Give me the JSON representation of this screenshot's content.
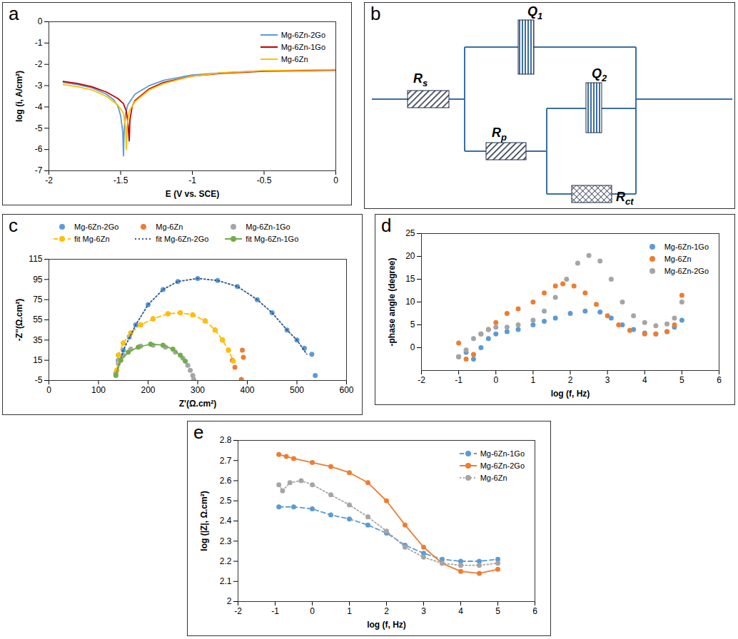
{
  "chart_data": [
    {
      "type": "line",
      "title": "a",
      "x_label": "E (V vs. SCE)",
      "y_label": "log (i, A/cm²)",
      "xlim": [
        -2,
        0
      ],
      "xticks": [
        -2,
        -1.5,
        -1,
        -0.5,
        0
      ],
      "ylim": [
        -7,
        0
      ],
      "yticks": [
        -7,
        -6,
        -5,
        -4,
        -3,
        -2,
        -1,
        0
      ],
      "grid": false,
      "legend": "top-right",
      "series": [
        {
          "name": "Mg-6Zn-2Go",
          "color": "#5b9bd5",
          "marker": "none",
          "line_style": "solid",
          "x": [
            -1.9,
            -1.8,
            -1.7,
            -1.6,
            -1.55,
            -1.52,
            -1.5,
            -1.485,
            -1.48,
            -1.475,
            -1.465,
            -1.45,
            -1.4,
            -1.3,
            -1.2,
            -1.0,
            -0.8,
            -0.5,
            -0.2,
            0
          ],
          "values": [
            -2.85,
            -2.95,
            -3.1,
            -3.4,
            -3.65,
            -3.95,
            -4.4,
            -5.2,
            -6.3,
            -5.0,
            -4.3,
            -3.9,
            -3.4,
            -3.0,
            -2.75,
            -2.5,
            -2.4,
            -2.3,
            -2.28,
            -2.25
          ]
        },
        {
          "name": "Mg-6Zn-1Go",
          "color": "#c00000",
          "marker": "none",
          "line_style": "solid",
          "x": [
            -1.9,
            -1.8,
            -1.7,
            -1.6,
            -1.52,
            -1.48,
            -1.46,
            -1.45,
            -1.44,
            -1.435,
            -1.42,
            -1.4,
            -1.3,
            -1.2,
            -1.0,
            -0.8,
            -0.5,
            0
          ],
          "values": [
            -2.8,
            -2.9,
            -3.05,
            -3.3,
            -3.6,
            -3.85,
            -4.2,
            -4.7,
            -5.6,
            -4.6,
            -4.0,
            -3.7,
            -3.15,
            -2.85,
            -2.55,
            -2.42,
            -2.32,
            -2.27
          ]
        },
        {
          "name": "Mg-6Zn",
          "color": "#ffc000",
          "marker": "none",
          "line_style": "solid",
          "x": [
            -1.9,
            -1.8,
            -1.7,
            -1.6,
            -1.52,
            -1.48,
            -1.465,
            -1.46,
            -1.455,
            -1.44,
            -1.4,
            -1.3,
            -1.2,
            -1.0,
            -0.8,
            -0.5,
            0
          ],
          "values": [
            -2.95,
            -3.05,
            -3.2,
            -3.5,
            -3.9,
            -4.3,
            -5.0,
            -6.0,
            -4.9,
            -4.2,
            -3.75,
            -3.2,
            -2.9,
            -2.55,
            -2.4,
            -2.3,
            -2.25
          ]
        }
      ]
    },
    {
      "type": "scatter",
      "title": "c",
      "x_label": "Z'(Ω.cm²)",
      "y_label": "-Z''(Ω.cm²)",
      "xlim": [
        0,
        600
      ],
      "xticks": [
        0,
        100,
        200,
        300,
        400,
        500,
        600
      ],
      "ylim": [
        -5,
        115
      ],
      "yticks": [
        -5,
        15,
        35,
        55,
        75,
        95,
        115
      ],
      "grid": false,
      "legend": "top",
      "series": [
        {
          "name": "Mg-6Zn-2Go",
          "color": "#5b9bd5",
          "marker": "circle",
          "line_style": "none",
          "x": [
            135,
            140,
            150,
            162,
            175,
            200,
            230,
            260,
            300,
            340,
            380,
            420,
            450,
            480,
            500,
            515,
            530,
            537
          ],
          "values": [
            2,
            15,
            25,
            38,
            50,
            70,
            85,
            93,
            96,
            94,
            88,
            75,
            62,
            45,
            35,
            27,
            21,
            0
          ]
        },
        {
          "name": "Mg-6Zn",
          "color": "#ed7d31",
          "marker": "circle",
          "line_style": "none",
          "x": [
            137,
            140,
            150,
            165,
            185,
            210,
            240,
            265,
            290,
            315,
            335,
            350,
            362,
            370,
            375,
            390,
            392,
            388
          ],
          "values": [
            5,
            20,
            32,
            42,
            50,
            56,
            61,
            62,
            60,
            54,
            45,
            35,
            25,
            15,
            8,
            25,
            18,
            -4
          ]
        },
        {
          "name": "Mg-6Zn-1Go",
          "color": "#a5a5a5",
          "marker": "circle",
          "line_style": "none",
          "x": [
            135,
            140,
            150,
            165,
            185,
            210,
            235,
            255,
            270,
            280,
            285,
            290,
            292
          ],
          "values": [
            2,
            12,
            20,
            26,
            29,
            30,
            28,
            23,
            17,
            10,
            5,
            0,
            -4
          ]
        },
        {
          "name": "fit Mg-6Zn",
          "color": "#ffc000",
          "marker": "circle",
          "line_style": "dashed",
          "x": [
            137,
            140,
            150,
            165,
            185,
            210,
            240,
            265,
            290,
            315,
            335,
            350,
            362,
            372
          ],
          "values": [
            5,
            20,
            32,
            42,
            50,
            56,
            61,
            62,
            60,
            54,
            45,
            35,
            25,
            14
          ]
        },
        {
          "name": "fit Mg-6Zn-2Go",
          "color": "#2f5597",
          "marker": "none",
          "line_style": "dotted",
          "x": [
            135,
            150,
            175,
            200,
            230,
            260,
            300,
            340,
            380,
            420,
            450,
            480,
            500,
            520
          ],
          "values": [
            0,
            25,
            50,
            70,
            85,
            93,
            96,
            94,
            88,
            75,
            62,
            45,
            35,
            21
          ]
        },
        {
          "name": "fit Mg-6Zn-1Go",
          "color": "#70ad47",
          "marker": "circle",
          "line_style": "solid",
          "x": [
            135,
            145,
            160,
            180,
            205,
            230,
            250,
            265,
            275
          ],
          "values": [
            0,
            15,
            23,
            28,
            31,
            30,
            26,
            20,
            14
          ]
        }
      ]
    },
    {
      "type": "scatter",
      "title": "d",
      "x_label": "log (f, Hz)",
      "y_label": "-phase angle (degree)",
      "xlim": [
        -2,
        6
      ],
      "xticks": [
        -2,
        -1,
        0,
        1,
        2,
        3,
        4,
        5,
        6
      ],
      "ylim": [
        -5,
        25
      ],
      "yticks": [
        0,
        5,
        10,
        15,
        20,
        25
      ],
      "grid": false,
      "legend": "top-right",
      "series": [
        {
          "name": "Mg-6Zn-1Go",
          "color": "#5b9bd5",
          "marker": "circle",
          "line_style": "none",
          "x": [
            -1,
            -0.8,
            -0.6,
            -0.4,
            -0.2,
            0,
            0.3,
            0.6,
            1,
            1.3,
            1.6,
            2,
            2.4,
            2.8,
            3.1,
            3.4,
            3.7,
            4,
            4.3,
            4.6,
            4.8,
            5
          ],
          "values": [
            -2,
            -1,
            -2.5,
            0,
            2,
            3,
            3.5,
            4,
            5,
            5.8,
            6.5,
            7.5,
            8,
            7.8,
            6.5,
            5,
            4,
            3.2,
            3,
            3.5,
            4.5,
            6
          ]
        },
        {
          "name": "Mg-6Zn",
          "color": "#ed7d31",
          "marker": "circle",
          "line_style": "none",
          "x": [
            -1,
            -0.8,
            -0.6,
            -0.4,
            -0.2,
            0,
            0.3,
            0.6,
            1,
            1.3,
            1.6,
            1.8,
            2.1,
            2.4,
            2.7,
            3,
            3.3,
            3.6,
            4,
            4.3,
            4.6,
            4.8,
            5
          ],
          "values": [
            1,
            -2.5,
            -1.5,
            3,
            4,
            5.5,
            7.5,
            8.5,
            10,
            12,
            13.5,
            14,
            13.5,
            12,
            9.5,
            7,
            5,
            3.8,
            3,
            3,
            3.5,
            5,
            11.5
          ]
        },
        {
          "name": "Mg-6Zn-2Go",
          "color": "#a5a5a5",
          "marker": "circle",
          "line_style": "none",
          "x": [
            -1,
            -0.8,
            -0.6,
            -0.4,
            -0.2,
            0,
            0.3,
            0.6,
            1,
            1.3,
            1.6,
            1.9,
            2.2,
            2.5,
            2.8,
            3.1,
            3.4,
            3.7,
            4,
            4.3,
            4.6,
            4.8,
            5
          ],
          "values": [
            -2,
            -0.5,
            2,
            3,
            4,
            4.5,
            4.5,
            5,
            6,
            8,
            11,
            15,
            18.5,
            20.2,
            19,
            15,
            10,
            7,
            5.5,
            4.8,
            5.2,
            6.5,
            10
          ]
        }
      ]
    },
    {
      "type": "scatter",
      "title": "e",
      "x_label": "log (f, Hz)",
      "y_label": "log (|Z|, Ω.cm²)",
      "xlim": [
        -2,
        6
      ],
      "xticks": [
        -2,
        -1,
        0,
        1,
        2,
        3,
        4,
        5,
        6
      ],
      "ylim": [
        2,
        2.8
      ],
      "yticks": [
        2,
        2.1,
        2.2,
        2.3,
        2.4,
        2.5,
        2.6,
        2.7,
        2.8
      ],
      "grid": false,
      "legend": "top-right",
      "series": [
        {
          "name": "Mg-6Zn-1Go",
          "color": "#5b9bd5",
          "marker": "circle",
          "line_style": "dashed",
          "x": [
            -0.9,
            -0.5,
            0,
            0.5,
            1,
            1.5,
            2,
            2.5,
            3,
            3.5,
            4,
            4.5,
            5
          ],
          "values": [
            2.47,
            2.47,
            2.46,
            2.43,
            2.41,
            2.38,
            2.34,
            2.28,
            2.24,
            2.21,
            2.2,
            2.2,
            2.21
          ]
        },
        {
          "name": "Mg-6Zn-2Go",
          "color": "#ed7d31",
          "marker": "circle",
          "line_style": "solid",
          "x": [
            -0.9,
            -0.7,
            -0.5,
            0,
            0.5,
            1,
            1.5,
            2,
            2.5,
            3,
            3.5,
            4,
            4.5,
            5
          ],
          "values": [
            2.73,
            2.72,
            2.71,
            2.69,
            2.67,
            2.64,
            2.59,
            2.5,
            2.38,
            2.27,
            2.19,
            2.15,
            2.14,
            2.16
          ]
        },
        {
          "name": "Mg-6Zn",
          "color": "#a5a5a5",
          "marker": "circle",
          "line_style": "dotted",
          "x": [
            -0.9,
            -0.8,
            -0.6,
            -0.3,
            0,
            0.5,
            1,
            1.5,
            2,
            2.5,
            3,
            3.5,
            4,
            4.5,
            5
          ],
          "values": [
            2.58,
            2.55,
            2.59,
            2.6,
            2.58,
            2.53,
            2.48,
            2.42,
            2.35,
            2.27,
            2.22,
            2.19,
            2.18,
            2.18,
            2.19
          ]
        }
      ]
    }
  ],
  "diagram": {
    "title": "b",
    "components": [
      {
        "label": "R",
        "sub": "s"
      },
      {
        "label": "Q",
        "sub": "1"
      },
      {
        "label": "R",
        "sub": "p"
      },
      {
        "label": "Q",
        "sub": "2"
      },
      {
        "label": "R",
        "sub": "ct"
      }
    ]
  }
}
